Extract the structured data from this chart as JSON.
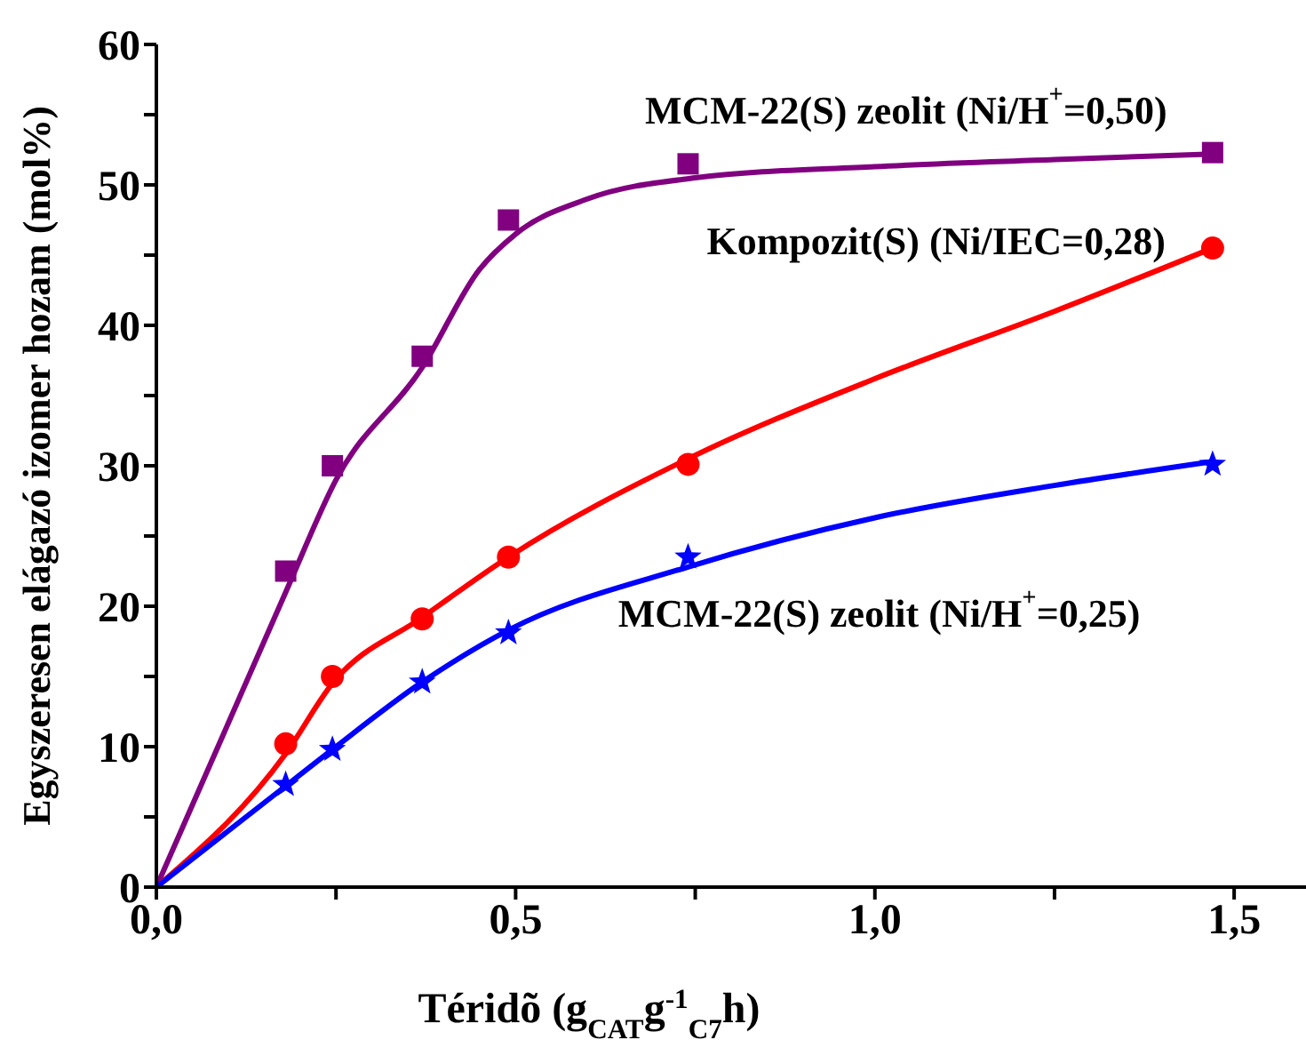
{
  "chart_data": {
    "type": "scatter",
    "xlabel": "Téridõ (g$_{CAT}$g$^{-1}$$_{C7}$h)",
    "ylabel": "Egyszeresen elágazó izomer hozam (mol%)",
    "xlim": [
      0,
      1.6
    ],
    "xticks": [
      {
        "value": 0,
        "label": "0,0"
      },
      {
        "value": 0.25,
        "label": null
      },
      {
        "value": 0.5,
        "label": "0,5"
      },
      {
        "value": 0.75,
        "label": null
      },
      {
        "value": 1.0,
        "label": "1,0"
      },
      {
        "value": 1.25,
        "label": null
      },
      {
        "value": 1.5,
        "label": "1,5"
      }
    ],
    "ylim": [
      0,
      60
    ],
    "yticks": [
      0,
      {
        "value": 5,
        "label": null
      },
      10,
      {
        "value": 15,
        "label": null
      },
      20,
      {
        "value": 25,
        "label": null
      },
      30,
      {
        "value": 35,
        "label": null
      },
      40,
      {
        "value": 45,
        "label": null
      },
      50,
      {
        "value": 55,
        "label": null
      },
      60
    ],
    "grid": false,
    "legend": false,
    "series": [
      {
        "name": "MCM-22(S) zeolit (Ni/H$^{+}$=0,50)",
        "color": "#800080",
        "marker": "square",
        "x": [
          0.18,
          0.245,
          0.37,
          0.49,
          0.74,
          1.47
        ],
        "values": [
          22.5,
          30,
          37.8,
          47.5,
          51.5,
          52.3
        ]
      },
      {
        "name": "Kompozit(S) (Ni/IEC=0,28)",
        "color": "#ff0000",
        "marker": "circle",
        "x": [
          0.18,
          0.245,
          0.37,
          0.49,
          0.74,
          1.47
        ],
        "values": [
          10.2,
          15,
          19.1,
          23.5,
          30.1,
          45.5
        ]
      },
      {
        "name": "MCM-22(S) zeolit (Ni/H$^{+}$=0,25)",
        "color": "#0000ff",
        "marker": "star",
        "x": [
          0.18,
          0.245,
          0.37,
          0.49,
          0.74,
          1.47
        ],
        "values": [
          7.3,
          9.8,
          14.6,
          18.1,
          23.5,
          30.1
        ]
      },
      {
        "type": "line",
        "color": "#800080",
        "marker": "none",
        "x": [
          0,
          0.18,
          0.25,
          0.37,
          0.45,
          0.5,
          0.6,
          0.75,
          1.0,
          1.25,
          1.47
        ],
        "values": [
          0,
          21,
          29,
          37,
          44,
          46.5,
          49,
          50.5,
          51.3,
          51.8,
          52.2
        ]
      },
      {
        "type": "line",
        "color": "#ff0000",
        "marker": "none",
        "x": [
          0,
          0.18,
          0.245,
          0.37,
          0.49,
          0.74,
          1.0,
          1.25,
          1.47
        ],
        "values": [
          0,
          9.5,
          14.5,
          19.2,
          23.5,
          30.5,
          36.2,
          41,
          45.5
        ]
      },
      {
        "type": "line",
        "color": "#0000ff",
        "marker": "none",
        "x": [
          0,
          0.18,
          0.245,
          0.37,
          0.49,
          0.74,
          1.0,
          1.25,
          1.47
        ],
        "values": [
          0,
          7.2,
          9.8,
          14.6,
          18.3,
          22.8,
          26.3,
          28.6,
          30.3
        ]
      }
    ]
  }
}
